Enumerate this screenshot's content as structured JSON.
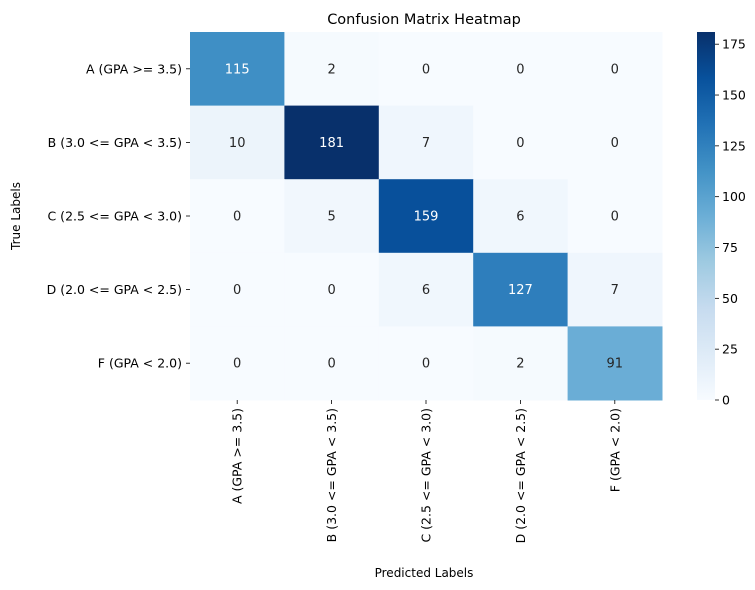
{
  "chart_data": {
    "type": "heatmap",
    "title": "Confusion Matrix Heatmap",
    "xlabel": "Predicted Labels",
    "ylabel": "True Labels",
    "row_labels": [
      "A (GPA >= 3.5)",
      "B (3.0 <= GPA < 3.5)",
      "C (2.5 <= GPA < 3.0)",
      "D (2.0 <= GPA < 2.5)",
      "F (GPA < 2.0)"
    ],
    "col_labels": [
      "A (GPA >= 3.5)",
      "B (3.0 <= GPA < 3.5)",
      "C (2.5 <= GPA < 3.0)",
      "D (2.0 <= GPA < 2.5)",
      "F (GPA < 2.0)"
    ],
    "values": [
      [
        115,
        2,
        0,
        0,
        0
      ],
      [
        10,
        181,
        7,
        0,
        0
      ],
      [
        0,
        5,
        159,
        6,
        0
      ],
      [
        0,
        0,
        6,
        127,
        7
      ],
      [
        0,
        0,
        0,
        2,
        91
      ]
    ],
    "colorbar": {
      "min": 0,
      "max": 181,
      "ticks": [
        "0",
        "25",
        "50",
        "75",
        "100",
        "125",
        "150",
        "175"
      ]
    },
    "colormap": "Blues",
    "colormap_stops": [
      "#f7fbff",
      "#deebf7",
      "#c6dbef",
      "#9ecae1",
      "#6baed6",
      "#4292c6",
      "#2171b5",
      "#08519c",
      "#08306b"
    ],
    "grid": false
  }
}
